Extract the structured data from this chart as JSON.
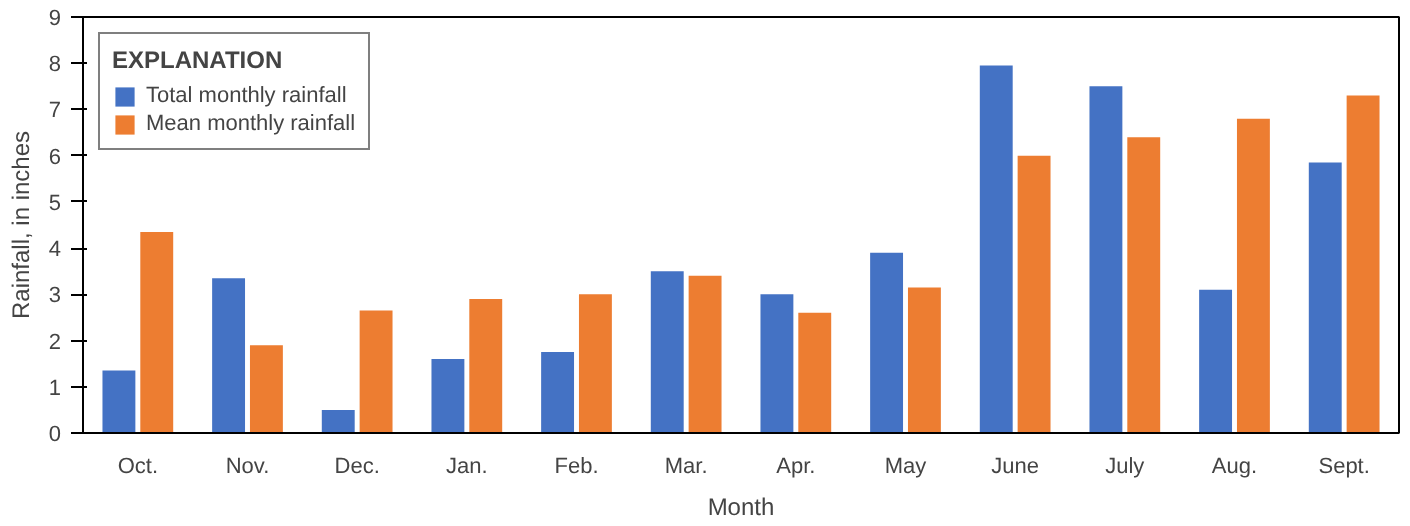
{
  "chart_data": {
    "type": "bar",
    "xlabel": "Month",
    "ylabel": "Rainfall, in inches",
    "legend_title": "EXPLANATION",
    "categories": [
      "Oct.",
      "Nov.",
      "Dec.",
      "Jan.",
      "Feb.",
      "Mar.",
      "Apr.",
      "May",
      "June",
      "July",
      "Aug.",
      "Sept."
    ],
    "series": [
      {
        "name": "Total monthly rainfall",
        "color": "#4472c4",
        "values": [
          1.35,
          3.35,
          0.5,
          1.6,
          1.75,
          3.5,
          3.0,
          3.9,
          7.95,
          7.5,
          3.1,
          5.85
        ]
      },
      {
        "name": "Mean monthly rainfall",
        "color": "#ed7d31",
        "values": [
          4.35,
          1.9,
          2.65,
          2.9,
          3.0,
          3.4,
          2.6,
          3.15,
          6.0,
          6.4,
          6.8,
          7.3
        ]
      }
    ],
    "ylim": [
      0,
      9
    ],
    "yticks": [
      0,
      1,
      2,
      3,
      4,
      5,
      6,
      7,
      8,
      9
    ],
    "grid": false,
    "legend": "top left"
  }
}
